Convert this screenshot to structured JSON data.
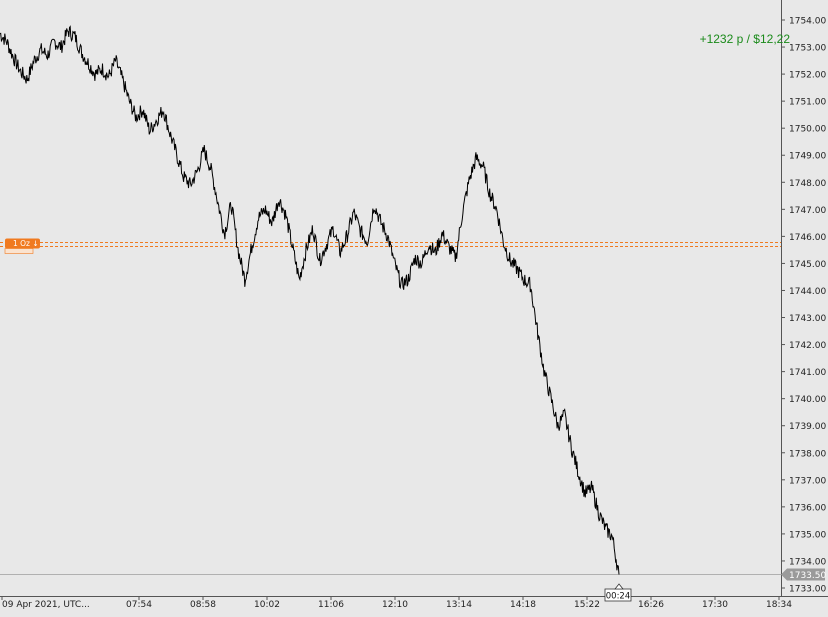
{
  "pnl": {
    "points": "+1232 p /",
    "money": "$12,22",
    "color": "#1a8a1a"
  },
  "order": {
    "label": "1 Oz",
    "arrow": "↓",
    "price": 1745.7,
    "color": "#f07a20"
  },
  "current": {
    "price_label": "1733.50",
    "price": 1733.5,
    "time_label": "00:24"
  },
  "colors": {
    "background": "#e8e8e8",
    "line": "#000000"
  },
  "chart_data": {
    "type": "line",
    "title": "",
    "xlabel": "",
    "ylabel": "",
    "ylim": [
      1733.0,
      1754.0
    ],
    "yticks": [
      1754,
      1753,
      1752,
      1751,
      1750,
      1749,
      1748,
      1747,
      1746,
      1745,
      1744,
      1743,
      1742,
      1741,
      1740,
      1739,
      1738,
      1737,
      1736,
      1735,
      1734,
      1733
    ],
    "ytick_labels": [
      "1754.00",
      "1753.00",
      "1752.00",
      "1751.00",
      "1750.00",
      "1749.00",
      "1748.00",
      "1747.00",
      "1746.00",
      "1745.00",
      "1744.00",
      "1743.00",
      "1742.00",
      "1741.00",
      "1740.00",
      "1739.00",
      "1738.00",
      "1737.00",
      "1736.00",
      "1735.00",
      "1734.00",
      "1733.00"
    ],
    "xtick_labels": [
      "09 Apr 2021, UTC...",
      "07:54",
      "08:58",
      "10:02",
      "11:06",
      "12:10",
      "13:14",
      "14:18",
      "15:22",
      "16:26",
      "17:30",
      "18:34"
    ],
    "grid": false,
    "series": [
      {
        "values": [
          1753.5,
          1753.2,
          1752.6,
          1752.1,
          1751.8,
          1752.5,
          1752.9,
          1752.7,
          1753.2,
          1753.0,
          1753.6,
          1753.4,
          1752.8,
          1752.4,
          1752.0,
          1752.2,
          1751.9,
          1752.5,
          1751.8,
          1751.0,
          1750.4,
          1750.7,
          1749.9,
          1750.3,
          1750.7,
          1749.8,
          1749.0,
          1748.2,
          1747.9,
          1748.4,
          1749.2,
          1748.5,
          1747.3,
          1746.1,
          1747.2,
          1745.5,
          1744.4,
          1745.6,
          1746.7,
          1747.0,
          1746.5,
          1747.4,
          1746.8,
          1745.6,
          1744.4,
          1745.5,
          1746.3,
          1745.1,
          1745.7,
          1746.3,
          1745.4,
          1746.0,
          1746.9,
          1746.2,
          1745.8,
          1747.2,
          1746.5,
          1746.0,
          1745.0,
          1744.2,
          1744.4,
          1745.2,
          1745.0,
          1745.7,
          1745.4,
          1746.1,
          1745.6,
          1745.2,
          1746.9,
          1748.1,
          1748.9,
          1748.6,
          1747.6,
          1747.0,
          1745.8,
          1745.1,
          1744.8,
          1744.4,
          1744.2,
          1742.5,
          1741.0,
          1740.0,
          1739.0,
          1739.4,
          1738.2,
          1737.3,
          1736.5,
          1736.7,
          1735.8,
          1735.2,
          1734.9,
          1733.5
        ]
      }
    ]
  }
}
